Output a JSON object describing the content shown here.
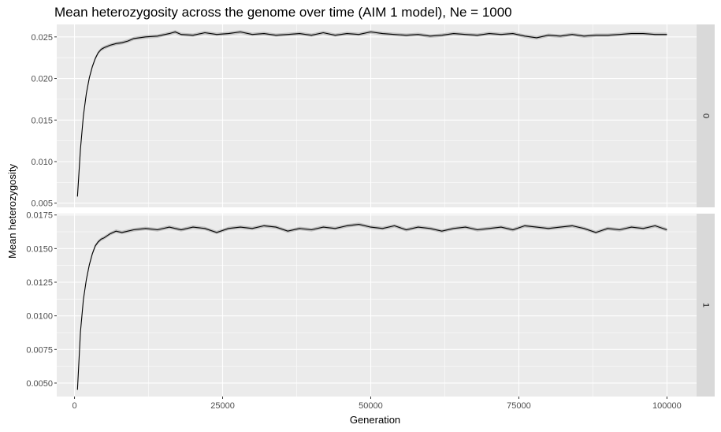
{
  "chart_data": {
    "type": "line",
    "title": "Mean heterozygosity across the genome over time (AIM 1 model), Ne = 1000",
    "xlabel": "Generation",
    "ylabel": "Mean heterozygosity",
    "xlim": [
      -3000,
      105000
    ],
    "x_ticks": [
      "0",
      "25000",
      "50000",
      "75000",
      "100000"
    ],
    "grid": true,
    "legend": "none",
    "colors": {
      "line": "#000000",
      "ribbon": "#999999",
      "panel": "#ebebeb",
      "strip": "#d9d9d9",
      "grid": "#ffffff"
    },
    "panels": [
      {
        "strip_label": "0",
        "ylim": [
          0.0045,
          0.0265
        ],
        "y_ticks": [
          "0.005",
          "0.010",
          "0.015",
          "0.020",
          "0.025"
        ],
        "series": [
          {
            "x": [
              500,
              1000,
              1500,
              2000,
              2500,
              3000,
              3500,
              4000,
              4500,
              5000,
              6000,
              7000,
              8000,
              9000,
              10000,
              12000,
              14000,
              16000,
              17000,
              18000,
              20000,
              22000,
              24000,
              26000,
              28000,
              30000,
              32000,
              34000,
              36000,
              38000,
              40000,
              42000,
              44000,
              46000,
              48000,
              50000,
              52000,
              54000,
              56000,
              58000,
              60000,
              62000,
              64000,
              66000,
              68000,
              70000,
              72000,
              74000,
              76000,
              78000,
              80000,
              82000,
              84000,
              86000,
              88000,
              90000,
              92000,
              94000,
              96000,
              98000,
              100000
            ],
            "y": [
              0.0058,
              0.0115,
              0.0155,
              0.0182,
              0.0201,
              0.0214,
              0.0224,
              0.0231,
              0.0235,
              0.0237,
              0.024,
              0.0242,
              0.0243,
              0.0245,
              0.0248,
              0.025,
              0.0251,
              0.0254,
              0.0256,
              0.0253,
              0.0252,
              0.0255,
              0.0253,
              0.0254,
              0.0256,
              0.0253,
              0.0254,
              0.0252,
              0.0253,
              0.0254,
              0.0252,
              0.0255,
              0.0252,
              0.0254,
              0.0253,
              0.0256,
              0.0254,
              0.0253,
              0.0252,
              0.0253,
              0.0251,
              0.0252,
              0.0254,
              0.0253,
              0.0252,
              0.0254,
              0.0253,
              0.0254,
              0.0251,
              0.0249,
              0.0252,
              0.0251,
              0.0253,
              0.0251,
              0.0252,
              0.0252,
              0.0253,
              0.0254,
              0.0254,
              0.0253,
              0.0253
            ]
          }
        ]
      },
      {
        "strip_label": "1",
        "ylim": [
          0.004,
          0.0176
        ],
        "y_ticks": [
          "0.0050",
          "0.0075",
          "0.0100",
          "0.0125",
          "0.0150",
          "0.0175"
        ],
        "series": [
          {
            "x": [
              500,
              1000,
              1500,
              2000,
              2500,
              3000,
              3500,
              4000,
              4500,
              5000,
              6000,
              7000,
              8000,
              9000,
              10000,
              12000,
              14000,
              16000,
              18000,
              20000,
              22000,
              24000,
              26000,
              28000,
              30000,
              32000,
              34000,
              36000,
              38000,
              40000,
              42000,
              44000,
              46000,
              48000,
              50000,
              52000,
              54000,
              56000,
              58000,
              60000,
              62000,
              64000,
              66000,
              68000,
              70000,
              72000,
              74000,
              76000,
              78000,
              80000,
              82000,
              84000,
              86000,
              88000,
              90000,
              92000,
              94000,
              96000,
              98000,
              100000
            ],
            "y": [
              0.0045,
              0.0088,
              0.0112,
              0.0127,
              0.0138,
              0.0146,
              0.0152,
              0.0155,
              0.0157,
              0.0158,
              0.0161,
              0.0163,
              0.0162,
              0.0163,
              0.0164,
              0.0165,
              0.0164,
              0.0166,
              0.0164,
              0.0166,
              0.0165,
              0.0162,
              0.0165,
              0.0166,
              0.0165,
              0.0167,
              0.0166,
              0.0163,
              0.0165,
              0.0164,
              0.0166,
              0.0165,
              0.0167,
              0.0168,
              0.0166,
              0.0165,
              0.0167,
              0.0164,
              0.0166,
              0.0165,
              0.0163,
              0.0165,
              0.0166,
              0.0164,
              0.0165,
              0.0166,
              0.0164,
              0.0167,
              0.0166,
              0.0165,
              0.0166,
              0.0167,
              0.0165,
              0.0162,
              0.0165,
              0.0164,
              0.0166,
              0.0165,
              0.0167,
              0.0164
            ]
          }
        ]
      }
    ]
  }
}
